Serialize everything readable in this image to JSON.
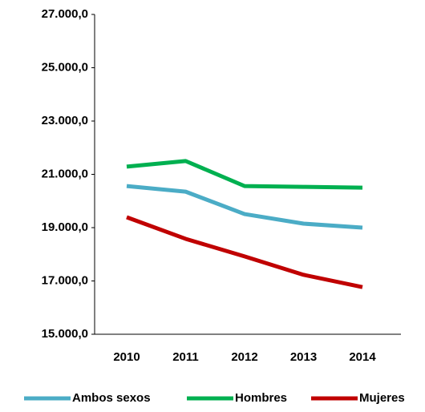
{
  "chart_data": {
    "type": "line",
    "x": [
      "2010",
      "2011",
      "2012",
      "2013",
      "2014"
    ],
    "series": [
      {
        "name": "Ambos sexos",
        "color": "#4bacc6",
        "values": [
          20560,
          20350,
          19510,
          19150,
          19000
        ]
      },
      {
        "name": "Hombres",
        "color": "#00b050",
        "values": [
          21290,
          21500,
          20560,
          20530,
          20500
        ]
      },
      {
        "name": "Mujeres",
        "color": "#c00000",
        "values": [
          19390,
          18580,
          17920,
          17230,
          16770
        ]
      }
    ],
    "ylim": [
      15000,
      27000
    ],
    "yticks": [
      {
        "value": 15000,
        "label": "15.000,0"
      },
      {
        "value": 17000,
        "label": "17.000,0"
      },
      {
        "value": 19000,
        "label": "19.000,0"
      },
      {
        "value": 21000,
        "label": "21.000,0"
      },
      {
        "value": 23000,
        "label": "23.000,0"
      },
      {
        "value": 25000,
        "label": "25.000,0"
      },
      {
        "value": 27000,
        "label": "27.000,0"
      }
    ],
    "grid": false,
    "legend": "bottom"
  }
}
